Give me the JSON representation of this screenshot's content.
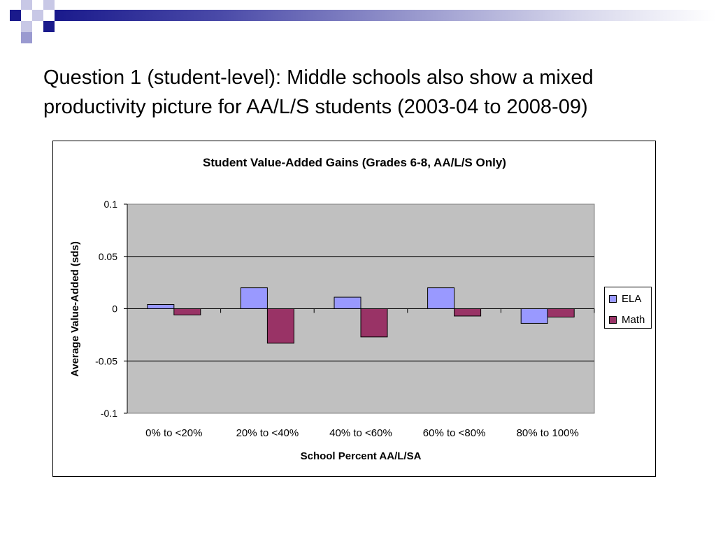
{
  "slide": {
    "title_line1": "Question 1 (student-level):  Middle schools also show a mixed",
    "title_line2": "productivity picture for AA/L/S students (2003-04 to 2008-09)"
  },
  "colors": {
    "ela": "#9999ff",
    "math": "#993366",
    "plot_bg": "#c0c0c0",
    "banner_dark": "#1a1a8c"
  },
  "chart_data": {
    "type": "bar",
    "title": "Student Value-Added Gains (Grades 6-8, AA/L/S Only)",
    "xlabel": "School Percent AA/L/SA",
    "ylabel": "Average Value-Added (sds)",
    "categories": [
      "0% to <20%",
      "20% to <40%",
      "40% to <60%",
      "60% to <80%",
      "80% to 100%"
    ],
    "series": [
      {
        "name": "ELA",
        "values": [
          0.004,
          0.02,
          0.011,
          0.02,
          -0.014
        ]
      },
      {
        "name": "Math",
        "values": [
          -0.006,
          -0.033,
          -0.027,
          -0.007,
          -0.008
        ]
      }
    ],
    "ylim": [
      -0.1,
      0.1
    ],
    "yticks": [
      0.1,
      0.05,
      0,
      -0.05,
      -0.1
    ],
    "ytick_labels": [
      "0.1",
      "0.05",
      "0",
      "-0.05",
      "-0.1"
    ],
    "grid": true,
    "legend_position": "right"
  }
}
